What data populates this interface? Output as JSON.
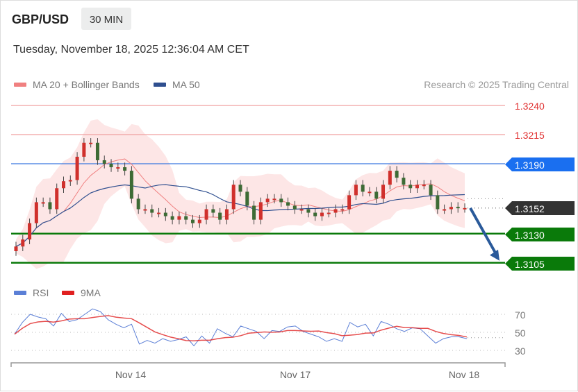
{
  "header": {
    "symbol": "GBP/USD",
    "timeframe": "30 MIN",
    "datetime": "Tuesday, November 18, 2025 12:36:04 AM CET"
  },
  "legend": {
    "ma20": "MA 20 + Bollinger Bands",
    "ma50": "MA 50",
    "copyright": "Research © 2025 Trading Central"
  },
  "colors": {
    "ma20": "#f08080",
    "ma50": "#2f4f8f",
    "resistance": "#e03030",
    "pivot": "#1a6ff0",
    "current": "#333333",
    "support": "#0a7a0a",
    "up_candle": "#d0302c",
    "down_candle": "#3d6b35",
    "rsi": "#5b7fd6",
    "rsi_ma": "#e02020",
    "arrow": "#2a5a9a"
  },
  "levels": {
    "resistance": [
      "1.3240",
      "1.3215"
    ],
    "pivot": "1.3190",
    "current": "1.3152",
    "support": [
      "1.3130",
      "1.3105"
    ]
  },
  "rsi_legend": {
    "rsi": "RSI",
    "ma": "9MA"
  },
  "chart_data": [
    {
      "type": "candlestick",
      "title": "GBP/USD 30 MIN",
      "ylim": [
        1.3095,
        1.325
      ],
      "x_ticks": [
        "Nov 14",
        "Nov 17",
        "Nov 18"
      ],
      "close": [
        1.3119,
        1.3125,
        1.3139,
        1.3157,
        1.3157,
        1.3151,
        1.3169,
        1.3175,
        1.3176,
        1.3196,
        1.3208,
        1.3208,
        1.3193,
        1.319,
        1.3187,
        1.3187,
        1.3184,
        1.316,
        1.3151,
        1.3151,
        1.3148,
        1.3148,
        1.3145,
        1.3142,
        1.3145,
        1.3142,
        1.3139,
        1.3142,
        1.3151,
        1.3148,
        1.3142,
        1.3151,
        1.3172,
        1.3166,
        1.3154,
        1.3142,
        1.3157,
        1.316,
        1.316,
        1.3157,
        1.3154,
        1.3151,
        1.3151,
        1.3148,
        1.3145,
        1.3148,
        1.3148,
        1.3151,
        1.3151,
        1.3163,
        1.3172,
        1.3166,
        1.3166,
        1.316,
        1.3172,
        1.3184,
        1.3178,
        1.3172,
        1.3169,
        1.3172,
        1.3172,
        1.3163,
        1.3151,
        1.3151,
        1.3153,
        1.3152,
        1.3152
      ],
      "forecast": {
        "from": 1.3152,
        "to": 1.3105,
        "direction": "down"
      }
    },
    {
      "type": "line",
      "ylim": [
        20,
        80
      ],
      "y_ticks": [
        "70",
        "50",
        "30"
      ],
      "series": [
        {
          "name": "RSI",
          "values": [
            48,
            61,
            70,
            67,
            65,
            57,
            71,
            62,
            64,
            70,
            76,
            73,
            64,
            59,
            55,
            59,
            37,
            41,
            38,
            43,
            40,
            42,
            45,
            35,
            46,
            38,
            54,
            49,
            45,
            57,
            54,
            51,
            43,
            52,
            51,
            56,
            57,
            51,
            48,
            45,
            40,
            43,
            40,
            61,
            56,
            59,
            46,
            62,
            59,
            54,
            51,
            55,
            54,
            46,
            38,
            43,
            45,
            45,
            43
          ]
        },
        {
          "name": "9MA"
        }
      ],
      "current_level": 44
    }
  ]
}
